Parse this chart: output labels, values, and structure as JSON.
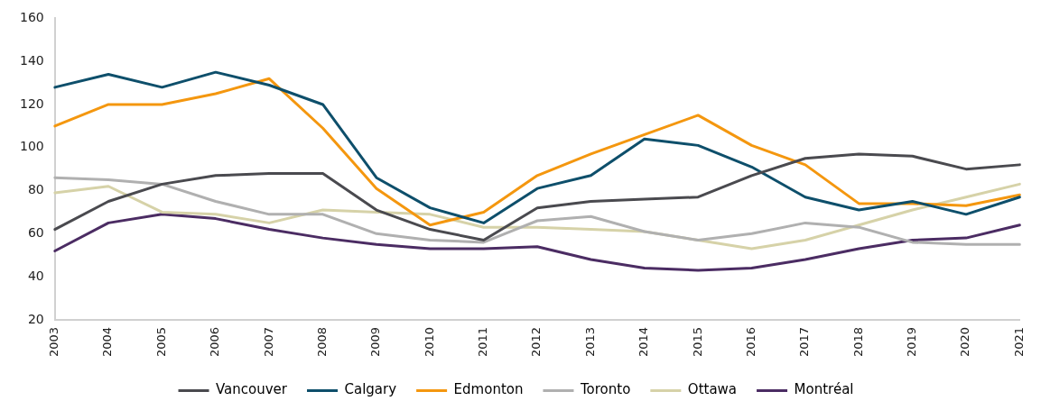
{
  "chart_data": {
    "type": "line",
    "categories": [
      "2003",
      "2004",
      "2005",
      "2006",
      "2007",
      "2008",
      "2009",
      "2010",
      "2011",
      "2012",
      "2013",
      "2014",
      "2015",
      "2016",
      "2017",
      "2018",
      "2019",
      "2020",
      "2021"
    ],
    "series": [
      {
        "name": "Vancouver",
        "color": "#4a4a4f",
        "values": [
          62,
          75,
          83,
          87,
          88,
          88,
          71,
          62,
          57,
          72,
          75,
          76,
          77,
          87,
          95,
          97,
          96,
          90,
          92
        ]
      },
      {
        "name": "Calgary",
        "color": "#0e4f6b",
        "values": [
          128,
          134,
          128,
          135,
          129,
          120,
          86,
          72,
          65,
          81,
          87,
          104,
          101,
          91,
          77,
          71,
          75,
          69,
          77
        ]
      },
      {
        "name": "Edmonton",
        "color": "#f4970f",
        "values": [
          110,
          120,
          120,
          125,
          132,
          109,
          81,
          64,
          70,
          87,
          97,
          106,
          115,
          101,
          92,
          74,
          74,
          73,
          78
        ]
      },
      {
        "name": "Toronto",
        "color": "#b0b0b0",
        "values": [
          86,
          85,
          83,
          75,
          69,
          69,
          60,
          57,
          56,
          66,
          68,
          61,
          57,
          60,
          65,
          63,
          56,
          55,
          55
        ]
      },
      {
        "name": "Ottawa",
        "color": "#d6d2a8",
        "values": [
          79,
          82,
          70,
          69,
          65,
          71,
          70,
          69,
          63,
          63,
          62,
          61,
          57,
          53,
          57,
          64,
          71,
          77,
          83
        ]
      },
      {
        "name": "Montréal",
        "color": "#4b2c63",
        "values": [
          52,
          65,
          69,
          67,
          62,
          58,
          55,
          53,
          53,
          54,
          48,
          44,
          43,
          44,
          48,
          53,
          57,
          58,
          64
        ]
      }
    ],
    "ylim": [
      20,
      160
    ],
    "yticks": [
      20,
      40,
      60,
      80,
      100,
      120,
      140,
      160
    ],
    "grid": false,
    "legend": "bottom",
    "marker": "none",
    "line_style": "solid"
  }
}
